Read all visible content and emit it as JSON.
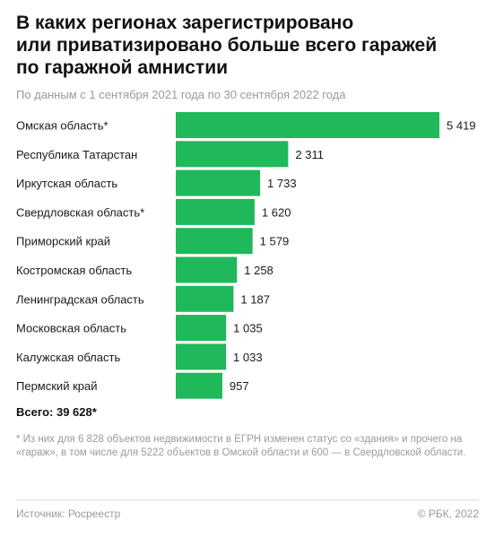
{
  "header": {
    "title": "В каких регионах зарегистрировано\nили приватизировано больше всего гаражей\nпо гаражной амнистии",
    "subtitle": "По данным с 1 сентября 2021 года по 30 сентября 2022 года"
  },
  "colors": {
    "bar": "#1fb85a",
    "text": "#1a1a1a",
    "muted": "#9a9a9a"
  },
  "chart_data": {
    "type": "bar",
    "orientation": "horizontal",
    "categories": [
      "Омская область*",
      "Республика Татарстан",
      "Иркутская область",
      "Свердловская область*",
      "Приморский край",
      "Костромская область",
      "Ленинградская область",
      "Московская область",
      "Калужская область",
      "Пермский край"
    ],
    "values": [
      5419,
      2311,
      1733,
      1620,
      1579,
      1258,
      1187,
      1035,
      1033,
      957
    ],
    "value_labels": [
      "5 419",
      "2 311",
      "1 733",
      "1 620",
      "1 579",
      "1 258",
      "1 187",
      "1 035",
      "1 033",
      "957"
    ],
    "title": "В каких регионах зарегистрировано или приватизировано больше всего гаражей по гаражной амнистии",
    "xlabel": "",
    "ylabel": "",
    "xlim": [
      0,
      5419
    ],
    "grid": false,
    "legend": "none"
  },
  "summary": {
    "total": "Всего: 39 628*"
  },
  "footnote": "* Из них для 6 828 объектов недвижимости в ЕГРН изменен статус со «здания» и прочего на «гараж», в том числе для 5222 объектов в Омской области и 600 — в Свердловской области.",
  "footer": {
    "source": "Источник: Росреестр",
    "copyright": "© РБК, 2022"
  }
}
